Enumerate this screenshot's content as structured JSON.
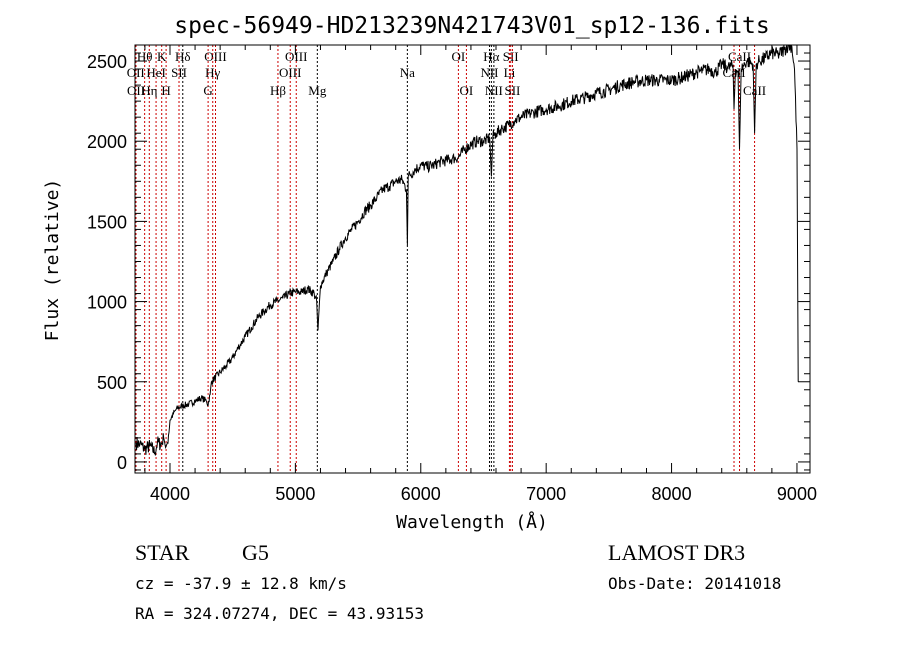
{
  "chart_data": {
    "type": "line",
    "title": "spec-56949-HD213239N421743V01_sp12-136.fits",
    "xlabel": "Wavelength (Å)",
    "ylabel": "Flux (relative)",
    "xlim": [
      3721,
      9104
    ],
    "ylim": [
      -69,
      2600
    ],
    "xticks": [
      4000,
      5000,
      6000,
      7000,
      8000,
      9000
    ],
    "yticks": [
      0,
      500,
      1000,
      1500,
      2000,
      2500
    ],
    "grid": false,
    "series": [
      {
        "name": "flux",
        "x": [
          3730,
          3760,
          3800,
          3840,
          3880,
          3900,
          3930,
          3950,
          3965,
          3980,
          4000,
          4050,
          4100,
          4150,
          4200,
          4250,
          4290,
          4300,
          4320,
          4330,
          4400,
          4450,
          4500,
          4550,
          4600,
          4650,
          4700,
          4750,
          4800,
          4850,
          4900,
          4950,
          5000,
          5050,
          5100,
          5150,
          5170,
          5180,
          5200,
          5250,
          5300,
          5350,
          5400,
          5450,
          5500,
          5550,
          5600,
          5650,
          5700,
          5750,
          5800,
          5850,
          5885,
          5893,
          5900,
          5950,
          6000,
          6050,
          6100,
          6150,
          6200,
          6250,
          6300,
          6350,
          6400,
          6450,
          6500,
          6550,
          6563,
          6575,
          6600,
          6650,
          6700,
          6750,
          6800,
          6900,
          7000,
          7100,
          7200,
          7300,
          7400,
          7500,
          7600,
          7700,
          7800,
          7900,
          8000,
          8100,
          8200,
          8250,
          8300,
          8350,
          8400,
          8450,
          8490,
          8498,
          8510,
          8530,
          8542,
          8555,
          8600,
          8650,
          8662,
          8675,
          8700,
          8750,
          8800,
          8850,
          8900,
          8930,
          8960,
          8980,
          9000,
          9010
        ],
        "y": [
          120,
          110,
          80,
          100,
          60,
          120,
          110,
          150,
          90,
          120,
          260,
          330,
          350,
          360,
          380,
          400,
          380,
          350,
          420,
          500,
          560,
          600,
          650,
          720,
          780,
          840,
          900,
          940,
          980,
          1000,
          1020,
          1050,
          1060,
          1060,
          1080,
          1050,
          1000,
          820,
          1100,
          1180,
          1250,
          1330,
          1400,
          1450,
          1500,
          1560,
          1600,
          1650,
          1700,
          1720,
          1750,
          1760,
          1700,
          1350,
          1780,
          1820,
          1850,
          1840,
          1850,
          1870,
          1880,
          1890,
          1900,
          1950,
          1980,
          2000,
          2000,
          2020,
          1780,
          2030,
          2050,
          2080,
          2100,
          2130,
          2150,
          2180,
          2200,
          2220,
          2250,
          2270,
          2300,
          2320,
          2350,
          2370,
          2380,
          2380,
          2380,
          2400,
          2430,
          2440,
          2450,
          2430,
          2480,
          2460,
          2470,
          2200,
          2450,
          2440,
          1950,
          2450,
          2500,
          2480,
          2050,
          2480,
          2500,
          2520,
          2550,
          2540,
          2570,
          2600,
          2590,
          2450,
          1950,
          500
        ]
      }
    ],
    "lines": [
      {
        "label": "Hθ",
        "wave": 3798,
        "color": "#cc0000"
      },
      {
        "label": "K",
        "wave": 3934,
        "color": "#cc0000"
      },
      {
        "label": "Hδ",
        "wave": 4102,
        "color": "#000000"
      },
      {
        "label": "OIII",
        "wave": 4363,
        "color": "#cc0000"
      },
      {
        "label": "OIII",
        "wave": 5007,
        "color": "#cc0000"
      },
      {
        "label": "OI",
        "wave": 6300,
        "color": "#cc0000"
      },
      {
        "label": "Hα",
        "wave": 6563,
        "color": "#000000"
      },
      {
        "label": "SII",
        "wave": 6717,
        "color": "#cc0000"
      },
      {
        "label": "CaII",
        "wave": 8542,
        "color": "#cc0000"
      },
      {
        "label": "OII",
        "wave": 3727,
        "color": "#cc0000"
      },
      {
        "label": "HeI",
        "wave": 3889,
        "color": "#cc0000"
      },
      {
        "label": "SII",
        "wave": 4072,
        "color": "#cc0000"
      },
      {
        "label": "Hγ",
        "wave": 4341,
        "color": "#cc0000"
      },
      {
        "label": "OIII",
        "wave": 4959,
        "color": "#cc0000"
      },
      {
        "label": "Na",
        "wave": 5893,
        "color": "#000000"
      },
      {
        "label": "NII",
        "wave": 6548,
        "color": "#000000"
      },
      {
        "label": "Li",
        "wave": 6707,
        "color": "#cc0000"
      },
      {
        "label": "CaII",
        "wave": 8498,
        "color": "#cc0000"
      },
      {
        "label": "OII",
        "wave": 3729,
        "color": "#cc0000"
      },
      {
        "label": "Hη",
        "wave": 3835,
        "color": "#cc0000"
      },
      {
        "label": "H",
        "wave": 3969,
        "color": "#cc0000"
      },
      {
        "label": "G",
        "wave": 4304,
        "color": "#cc0000"
      },
      {
        "label": "Hβ",
        "wave": 4861,
        "color": "#cc0000"
      },
      {
        "label": "Mg",
        "wave": 5175,
        "color": "#000000"
      },
      {
        "label": "OI",
        "wave": 6364,
        "color": "#cc0000"
      },
      {
        "label": "NII",
        "wave": 6583,
        "color": "#000000"
      },
      {
        "label": "SII",
        "wave": 6731,
        "color": "#cc0000"
      },
      {
        "label": "CaII",
        "wave": 8662,
        "color": "#cc0000"
      }
    ]
  },
  "info": {
    "class": "STAR",
    "subclass": "G5",
    "cz": "cz = -37.9 ± 12.8 km/s",
    "coords": "RA = 324.07274, DEC =  43.93153",
    "survey": "LAMOST DR3",
    "obs_date": "Obs-Date: 20141018"
  }
}
